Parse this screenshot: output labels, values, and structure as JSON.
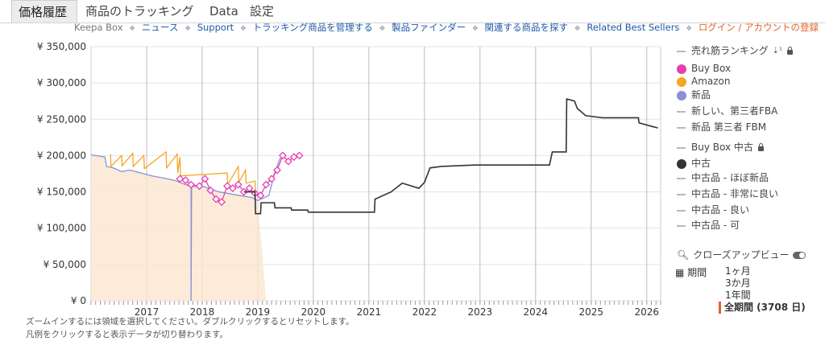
{
  "tabs": [
    {
      "label": "価格履歴",
      "active": true
    },
    {
      "label": "商品のトラッキング",
      "active": false
    },
    {
      "label": "Data",
      "active": false
    },
    {
      "label": "設定",
      "active": false
    }
  ],
  "links": {
    "keepa_box": "Keepa Box",
    "news": "ニュース",
    "support": "Support",
    "manage_tracking": "トラッキング商品を管理する",
    "product_finder": "製品ファインダー",
    "related_products": "関連する商品を探す",
    "related_best_sellers": "Related Best Sellers",
    "login": "ログイン / アカウントの登録"
  },
  "legend": [
    {
      "label": "売れ筋ランキング",
      "marker": "dash",
      "color": "#b8b8b8",
      "icons": [
        "sort-icon",
        "lock-icon"
      ]
    },
    {
      "label": "Buy Box",
      "marker": "dot",
      "color": "#e83fb0"
    },
    {
      "label": "Amazon",
      "marker": "dot",
      "color": "#f5a623"
    },
    {
      "label": "新品",
      "marker": "dot",
      "color": "#8b8fd9"
    },
    {
      "label": "新しい、第三者FBA",
      "marker": "dash",
      "color": "#b8b8b8"
    },
    {
      "label": "新品 第三者 FBM",
      "marker": "dash",
      "color": "#b8b8b8"
    },
    {
      "label": "Buy Box 中古",
      "marker": "dash",
      "color": "#b8b8b8",
      "icons": [
        "lock-icon"
      ]
    },
    {
      "label": "中古",
      "marker": "dot",
      "color": "#333333"
    },
    {
      "label": "中古品 - ほぼ新品",
      "marker": "dash",
      "color": "#b8b8b8"
    },
    {
      "label": "中古品 - 非常に良い",
      "marker": "dash",
      "color": "#b8b8b8"
    },
    {
      "label": "中古品 - 良い",
      "marker": "dash",
      "color": "#b8b8b8"
    },
    {
      "label": "中古品 - 可",
      "marker": "dash",
      "color": "#b8b8b8"
    }
  ],
  "closeup": {
    "label": "クローズアップビュー"
  },
  "period": {
    "label": "期間",
    "ranges": [
      "1ヶ月",
      "3か月",
      "1年間",
      "全期間 (3708 日)"
    ],
    "active": 3
  },
  "help": {
    "line1": "ズームインするには領域を選択してください。ダブルクリックするとリセットします。",
    "line2": "凡例をクリックすると表示データが切り替わります。"
  },
  "chart_data": {
    "type": "line",
    "ylim": [
      0,
      350000
    ],
    "yticks": [
      "¥ 0",
      "¥ 50,000",
      "¥ 100,000",
      "¥ 150,000",
      "¥ 200,000",
      "¥ 250,000",
      "¥ 300,000",
      "¥ 350,000"
    ],
    "xlim": [
      2016.0,
      2026.25
    ],
    "xticks": [
      "2017",
      "2018",
      "2019",
      "2020",
      "2021",
      "2022",
      "2023",
      "2024",
      "2025",
      "2026"
    ],
    "series": [
      {
        "name": "新品",
        "color": "#8b8fd9",
        "points": [
          [
            2016.0,
            201000
          ],
          [
            2016.25,
            198000
          ],
          [
            2016.28,
            185000
          ],
          [
            2016.4,
            183000
          ],
          [
            2016.55,
            178000
          ],
          [
            2016.7,
            180000
          ],
          [
            2016.9,
            176000
          ],
          [
            2017.1,
            172000
          ],
          [
            2017.3,
            169000
          ],
          [
            2017.5,
            166000
          ],
          [
            2017.7,
            160000
          ],
          [
            2017.8,
            157000
          ],
          [
            2017.8,
            0
          ],
          [
            2017.81,
            157000
          ],
          [
            2018.0,
            158000
          ],
          [
            2018.3,
            150000
          ],
          [
            2018.6,
            146000
          ],
          [
            2018.9,
            142000
          ],
          [
            2019.0,
            138000
          ],
          [
            2019.2,
            145000
          ],
          [
            2019.3,
            175000
          ],
          [
            2019.4,
            196000
          ],
          [
            2019.5,
            200000
          ]
        ]
      },
      {
        "name": "Amazon",
        "color": "#f5a623",
        "points": [
          [
            2016.35,
            202000
          ],
          [
            2016.36,
            185000
          ],
          [
            2016.55,
            200000
          ],
          [
            2016.56,
            186000
          ],
          [
            2016.75,
            203000
          ],
          [
            2016.76,
            185000
          ],
          [
            2016.95,
            200000
          ],
          [
            2016.96,
            182000
          ],
          [
            2017.35,
            205000
          ],
          [
            2017.36,
            183000
          ],
          [
            2017.55,
            202000
          ],
          [
            2017.56,
            176000
          ],
          [
            2017.6,
            198000
          ],
          [
            2017.61,
            172000
          ],
          [
            2018.45,
            176000
          ],
          [
            2018.46,
            160000
          ],
          [
            2018.65,
            185000
          ],
          [
            2018.66,
            163000
          ],
          [
            2018.78,
            180000
          ],
          [
            2018.79,
            162000
          ],
          [
            2018.95,
            165000
          ],
          [
            2018.96,
            150000
          ]
        ]
      },
      {
        "name": "Buy Box",
        "color": "#e83fb0",
        "points": [
          [
            2017.6,
            168000
          ],
          [
            2017.7,
            166000
          ],
          [
            2017.8,
            160000
          ],
          [
            2017.95,
            158000
          ],
          [
            2018.05,
            168000
          ],
          [
            2018.15,
            152000
          ],
          [
            2018.25,
            140000
          ],
          [
            2018.35,
            136000
          ],
          [
            2018.45,
            158000
          ],
          [
            2018.55,
            155000
          ],
          [
            2018.65,
            160000
          ],
          [
            2018.75,
            150000
          ],
          [
            2018.85,
            155000
          ],
          [
            2018.95,
            148000
          ],
          [
            2019.05,
            145000
          ],
          [
            2019.15,
            160000
          ],
          [
            2019.25,
            168000
          ],
          [
            2019.35,
            180000
          ],
          [
            2019.45,
            200000
          ],
          [
            2019.55,
            192000
          ],
          [
            2019.65,
            198000
          ],
          [
            2019.75,
            200000
          ]
        ]
      },
      {
        "name": "中古",
        "color": "#333333",
        "points": [
          [
            2018.75,
            150000
          ],
          [
            2018.95,
            150000
          ],
          [
            2018.96,
            120000
          ],
          [
            2019.05,
            120000
          ],
          [
            2019.06,
            135000
          ],
          [
            2019.3,
            135000
          ],
          [
            2019.31,
            128000
          ],
          [
            2019.6,
            128000
          ],
          [
            2019.61,
            125000
          ],
          [
            2019.9,
            125000
          ],
          [
            2019.91,
            122000
          ],
          [
            2020.5,
            122000
          ],
          [
            2020.51,
            122000
          ],
          [
            2021.1,
            122000
          ],
          [
            2021.11,
            140000
          ],
          [
            2021.4,
            150000
          ],
          [
            2021.6,
            162000
          ],
          [
            2021.9,
            155000
          ],
          [
            2022.0,
            163000
          ],
          [
            2022.1,
            183000
          ],
          [
            2022.3,
            185000
          ],
          [
            2022.6,
            186000
          ],
          [
            2022.9,
            187000
          ],
          [
            2023.4,
            187000
          ],
          [
            2023.9,
            187000
          ],
          [
            2024.25,
            187000
          ],
          [
            2024.3,
            205000
          ],
          [
            2024.55,
            205000
          ],
          [
            2024.56,
            278000
          ],
          [
            2024.7,
            275000
          ],
          [
            2024.75,
            265000
          ],
          [
            2024.9,
            255000
          ],
          [
            2025.2,
            252000
          ],
          [
            2025.6,
            252000
          ],
          [
            2025.85,
            252000
          ],
          [
            2025.86,
            245000
          ],
          [
            2026.1,
            240000
          ],
          [
            2026.2,
            238000
          ]
        ]
      }
    ]
  }
}
